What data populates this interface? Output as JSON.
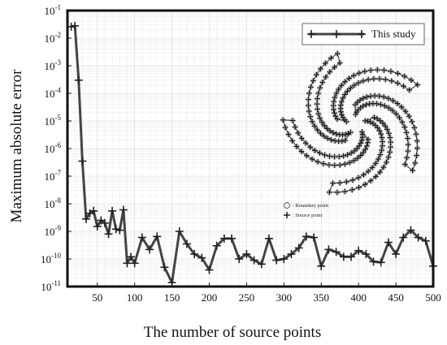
{
  "chart_data": {
    "type": "line",
    "xlabel": "The number of source points",
    "ylabel": "Maximum absolute error",
    "xlim": [
      10,
      500
    ],
    "ylim_log10": [
      -11,
      -1
    ],
    "log_y": true,
    "grid": true,
    "legend_position": "top-right",
    "x_ticks": [
      50,
      100,
      150,
      200,
      250,
      300,
      350,
      400,
      450,
      500
    ],
    "x_tick_labels": [
      "50",
      "100",
      "150",
      "200",
      "250",
      "300",
      "350",
      "400",
      "450",
      "500"
    ],
    "y_ticks_exponent": [
      -1,
      -2,
      -3,
      -4,
      -5,
      -6,
      -7,
      -8,
      -9,
      -10,
      -11
    ],
    "series": [
      {
        "name": "This study",
        "color": "#444444",
        "marker": "plus",
        "x": [
          15,
          20,
          25,
          30,
          35,
          40,
          45,
          50,
          55,
          60,
          65,
          70,
          75,
          80,
          85,
          90,
          95,
          100,
          110,
          120,
          130,
          140,
          150,
          160,
          170,
          180,
          190,
          200,
          210,
          220,
          230,
          240,
          250,
          260,
          270,
          280,
          290,
          300,
          310,
          320,
          330,
          340,
          350,
          360,
          370,
          380,
          390,
          400,
          410,
          420,
          430,
          440,
          450,
          460,
          470,
          480,
          490,
          500
        ],
        "y": [
          0.026,
          0.028,
          0.0003,
          3.5e-07,
          2.8e-09,
          4.5e-09,
          5.5e-09,
          1.5e-09,
          2.5e-09,
          2e-09,
          8e-10,
          5.5e-09,
          1.2e-09,
          1.1e-09,
          6e-09,
          7e-11,
          1.2e-10,
          7e-11,
          6e-10,
          2.2e-10,
          6.5e-10,
          5e-11,
          1.4e-11,
          1e-09,
          3.5e-10,
          1.5e-10,
          1.1e-10,
          4e-11,
          3e-10,
          5.5e-10,
          5.5e-10,
          1e-10,
          1.5e-10,
          9e-11,
          6.5e-11,
          5.5e-10,
          9e-11,
          1e-10,
          1.5e-10,
          2.5e-10,
          6.5e-10,
          6e-10,
          5.5e-11,
          2.2e-10,
          1.8e-10,
          1.2e-10,
          1.2e-10,
          2e-10,
          1.5e-10,
          8e-11,
          7.5e-11,
          4e-10,
          1.5e-10,
          6e-10,
          1.1e-09,
          6e-10,
          4.5e-10,
          5.5e-11
        ]
      }
    ]
  },
  "legend": {
    "label": "This study"
  },
  "inset": {
    "boundary_label": ": Boundary point",
    "source_label": ": Source point"
  }
}
